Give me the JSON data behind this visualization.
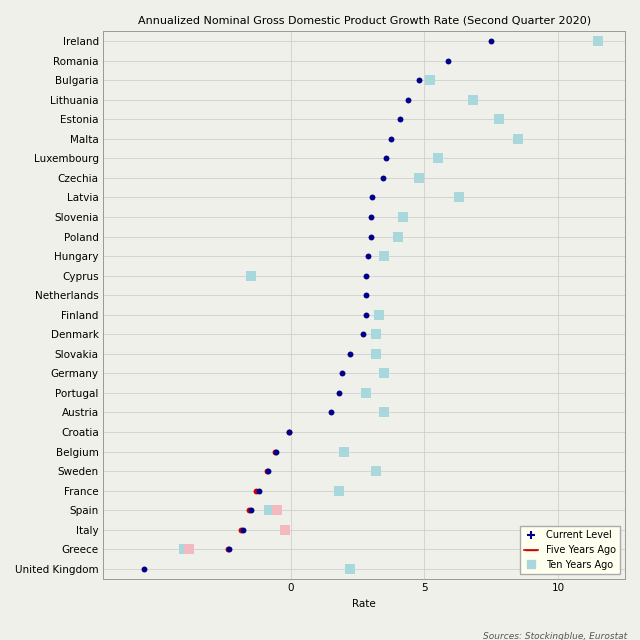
{
  "title": "Annualized Nominal Gross Domestic Product Growth Rate (Second Quarter 2020)",
  "xlabel": "Rate",
  "source": "Sources: Stockingblue, Eurostat",
  "countries": [
    "Ireland",
    "Romania",
    "Bulgaria",
    "Lithuania",
    "Estonia",
    "Malta",
    "Luxembourg",
    "Czechia",
    "Latvia",
    "Slovenia",
    "Poland",
    "Hungary",
    "Cyprus",
    "Netherlands",
    "Finland",
    "Denmark",
    "Slovakia",
    "Germany",
    "Portugal",
    "Austria",
    "Croatia",
    "Belgium",
    "Sweden",
    "France",
    "Spain",
    "Italy",
    "Greece",
    "United Kingdom"
  ],
  "current_vals": {
    "Ireland": 7.5,
    "Romania": 5.9,
    "Bulgaria": 4.8,
    "Lithuania": 4.4,
    "Estonia": 4.1,
    "Malta": 3.75,
    "Luxembourg": 3.55,
    "Czechia": 3.45,
    "Latvia": 3.05,
    "Slovenia": 3.0,
    "Poland": 3.0,
    "Hungary": 2.9,
    "Cyprus": 2.8,
    "Netherlands": 2.8,
    "Finland": 2.8,
    "Denmark": 2.7,
    "Slovakia": 2.2,
    "Germany": 1.9,
    "Portugal": 1.8,
    "Austria": 1.5,
    "Croatia": -0.05,
    "Belgium": -0.55,
    "Sweden": -0.85,
    "France": -1.2,
    "Spain": -1.5,
    "Italy": -1.8,
    "Greece": -2.3,
    "United Kingdom": -5.5
  },
  "five_years_dots": {
    "Croatia": -0.05,
    "Belgium": -0.6,
    "Sweden": -0.9,
    "France": -1.3,
    "Spain": -1.55,
    "Italy": -1.85,
    "Greece": -2.35
  },
  "ten_years_sq": {
    "Ireland": 11.5,
    "Bulgaria": 5.2,
    "Lithuania": 6.8,
    "Estonia": 7.8,
    "Malta": 8.5,
    "Luxembourg": 5.5,
    "Czechia": 4.8,
    "Latvia": 6.3,
    "Slovenia": 4.2,
    "Poland": 4.0,
    "Hungary": 3.5,
    "Cyprus": -1.5,
    "Finland": 3.3,
    "Denmark": 3.2,
    "Slovakia": 3.2,
    "Germany": 3.5,
    "Portugal": 2.8,
    "Austria": 3.5,
    "Belgium": 2.0,
    "Sweden": 3.2,
    "France": 1.8,
    "Spain": -0.8,
    "Italy": -0.2,
    "Greece": -4.0,
    "United Kingdom": 2.2
  },
  "five_years_sq": {
    "Spain": -0.5,
    "Italy": -0.2,
    "Greece": -3.8
  },
  "xlim": [
    -7.0,
    12.5
  ],
  "xticks": [
    0,
    5,
    10
  ],
  "dot_size": 18,
  "sq_size": 55,
  "current_color": "#00008b",
  "five_years_dot_color": "#cc0000",
  "ten_years_sq_color": "#a8d8dc",
  "five_years_sq_color": "#f4b8c0",
  "background_color": "#f0f0eb",
  "grid_color": "#c8c8c8",
  "title_fontsize": 8.0,
  "label_fontsize": 7.5,
  "tick_fontsize": 7.5,
  "legend_fontsize": 7.0
}
